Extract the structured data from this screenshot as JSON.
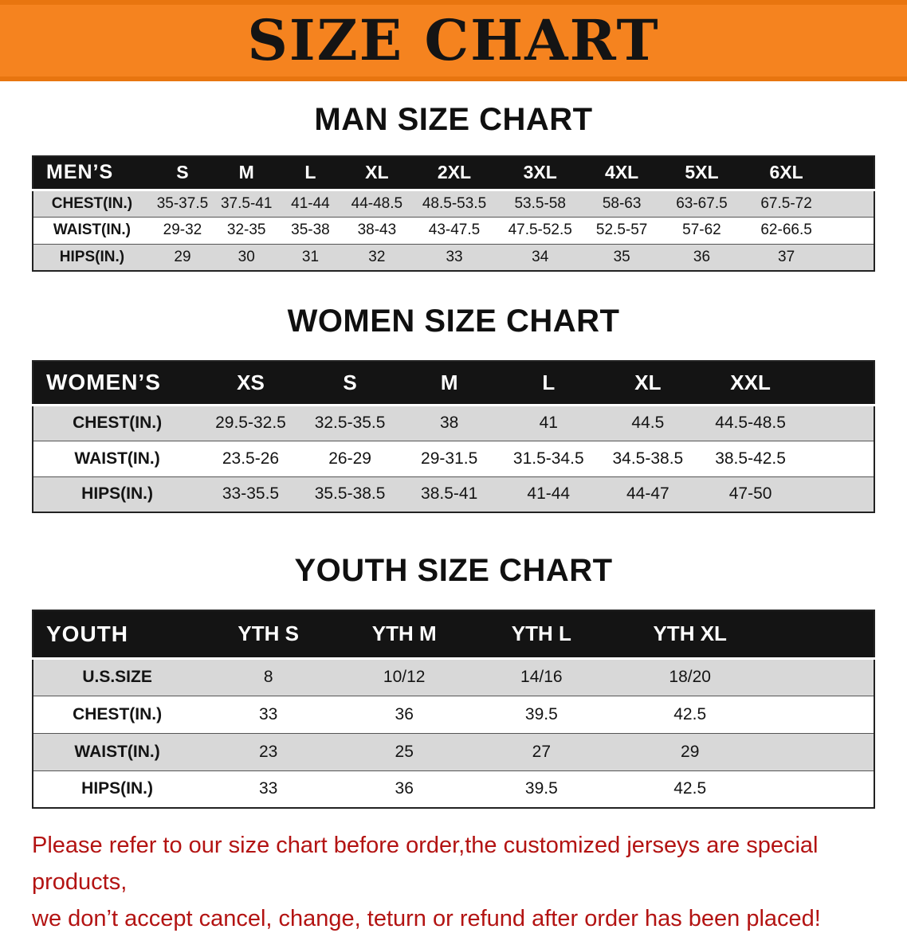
{
  "banner": {
    "title": "SIZE CHART",
    "bg_color": "#f5831f",
    "text_color": "#141414"
  },
  "sections": [
    {
      "heading": "MAN SIZE CHART",
      "table": {
        "header": [
          "MEN’S",
          "S",
          "M",
          "L",
          "XL",
          "2XL",
          "3XL",
          "4XL",
          "5XL",
          "6XL"
        ],
        "rows": [
          {
            "label": "CHEST(IN.)",
            "values": [
              "35-37.5",
              "37.5-41",
              "41-44",
              "44-48.5",
              "48.5-53.5",
              "53.5-58",
              "58-63",
              "63-67.5",
              "67.5-72"
            ]
          },
          {
            "label": "WAIST(IN.)",
            "values": [
              "29-32",
              "32-35",
              "35-38",
              "38-43",
              "43-47.5",
              "47.5-52.5",
              "52.5-57",
              "57-62",
              "62-66.5"
            ]
          },
          {
            "label": "HIPS(IN.)",
            "values": [
              "29",
              "30",
              "31",
              "32",
              "33",
              "34",
              "35",
              "36",
              "37"
            ]
          }
        ]
      }
    },
    {
      "heading": "WOMEN SIZE CHART",
      "table": {
        "header": [
          "WOMEN’S",
          "XS",
          "S",
          "M",
          "L",
          "XL",
          "XXL"
        ],
        "rows": [
          {
            "label": "CHEST(IN.)",
            "values": [
              "29.5-32.5",
              "32.5-35.5",
              "38",
              "41",
              "44.5",
              "44.5-48.5"
            ]
          },
          {
            "label": "WAIST(IN.)",
            "values": [
              "23.5-26",
              "26-29",
              "29-31.5",
              "31.5-34.5",
              "34.5-38.5",
              "38.5-42.5"
            ]
          },
          {
            "label": "HIPS(IN.)",
            "values": [
              "33-35.5",
              "35.5-38.5",
              "38.5-41",
              "41-44",
              "44-47",
              "47-50"
            ]
          }
        ]
      }
    },
    {
      "heading": "YOUTH SIZE CHART",
      "table": {
        "header": [
          "YOUTH",
          "YTH S",
          "YTH M",
          "YTH L",
          "YTH XL"
        ],
        "rows": [
          {
            "label": "U.S.SIZE",
            "values": [
              "8",
              "10/12",
              "14/16",
              "18/20"
            ]
          },
          {
            "label": "CHEST(IN.)",
            "values": [
              "33",
              "36",
              "39.5",
              "42.5"
            ]
          },
          {
            "label": "WAIST(IN.)",
            "values": [
              "23",
              "25",
              "27",
              "29"
            ]
          },
          {
            "label": "HIPS(IN.)",
            "values": [
              "33",
              "36",
              "39.5",
              "42.5"
            ]
          }
        ]
      }
    }
  ],
  "disclaimer": {
    "line1": "Please refer to our size chart before order,the customized jerseys are special products,",
    "line2": "we don’t accept cancel, change, teturn or refund after order has been placed!",
    "color": "#b31312"
  }
}
